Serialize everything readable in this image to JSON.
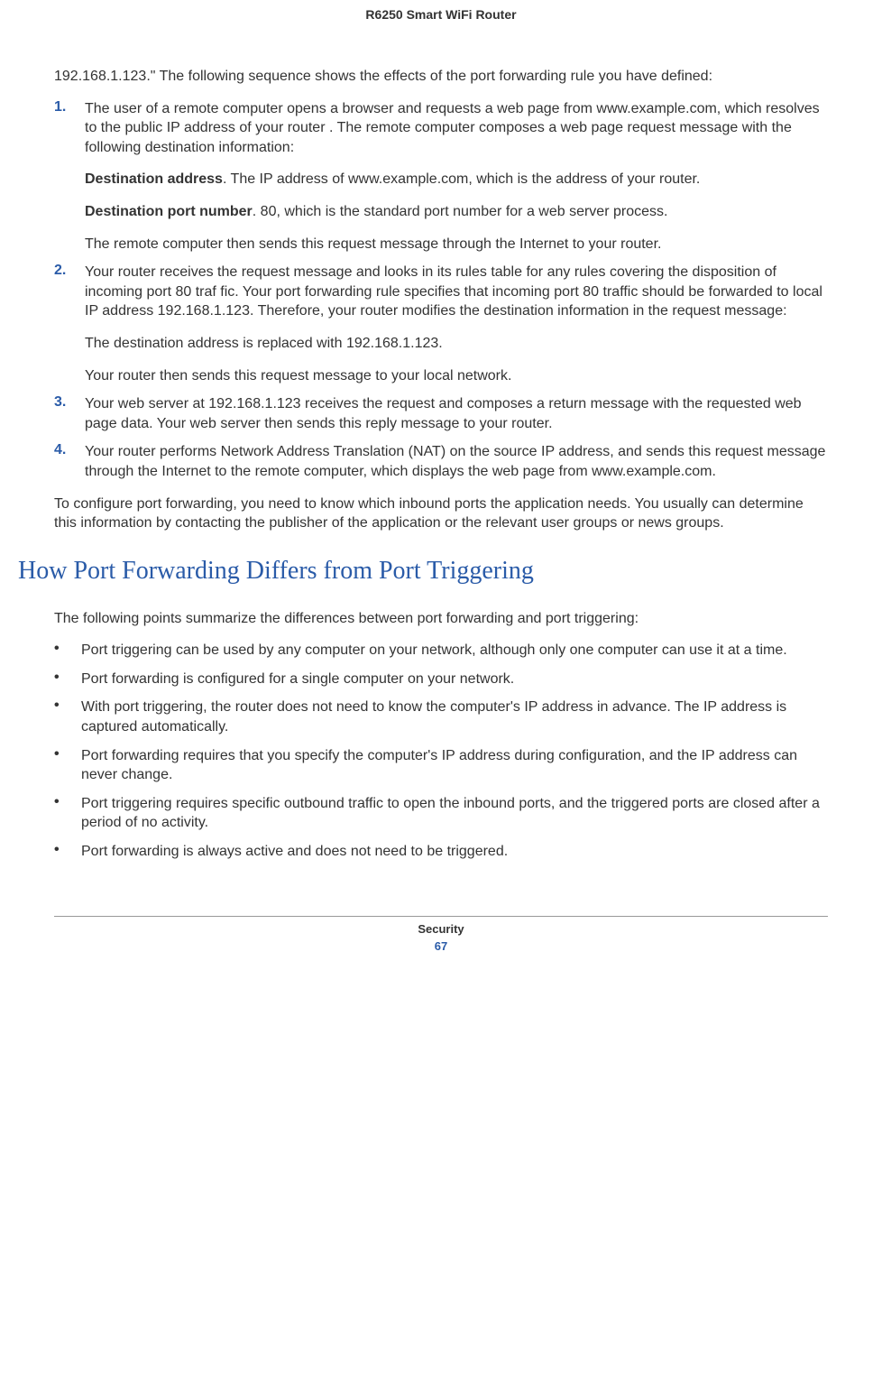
{
  "header": {
    "title": "R6250 Smart WiFi Router"
  },
  "intro": "192.168.1.123.\" The following sequence shows the effects of the port forwarding rule you have defined:",
  "steps": [
    {
      "marker": "1.",
      "paragraphs": [
        {
          "runs": [
            {
              "text": "The user of a remote computer opens a browser and requests a web page from www.example.com, which resolves to the public IP address of your router . The remote computer composes a web page request message with the following destination information:"
            }
          ]
        },
        {
          "runs": [
            {
              "text": "Destination address",
              "bold": true
            },
            {
              "text": ". The IP address of www.example.com, which is the address of your router."
            }
          ]
        },
        {
          "runs": [
            {
              "text": "Destination port number",
              "bold": true
            },
            {
              "text": ". 80, which is the standard port number for a web server process."
            }
          ]
        },
        {
          "runs": [
            {
              "text": "The remote computer then sends this request message through the Internet to your router."
            }
          ]
        }
      ]
    },
    {
      "marker": "2.",
      "paragraphs": [
        {
          "runs": [
            {
              "text": "Your router receives the request message and looks in its rules table for any rules covering the disposition of incoming port 80 traf fic. Your port forwarding rule specifies that incoming port 80 traffic should be forwarded to local IP address 192.168.1.123. Therefore, your router modifies the destination information in the request message:"
            }
          ]
        },
        {
          "runs": [
            {
              "text": "The destination address is replaced with 192.168.1.123."
            }
          ]
        },
        {
          "runs": [
            {
              "text": "Your router then sends this request message to your local network."
            }
          ]
        }
      ]
    },
    {
      "marker": "3.",
      "paragraphs": [
        {
          "runs": [
            {
              "text": "Your web server at 192.168.1.123 receives the request and composes a return message with the requested web page data.  Your web server then sends this reply message to your router."
            }
          ]
        }
      ]
    },
    {
      "marker": "4.",
      "paragraphs": [
        {
          "runs": [
            {
              "text": "Your router performs Network Address Translation (NAT) on the source IP address, and sends this request message through the Internet to the remote computer, which displays the web page from www.example.com."
            }
          ]
        }
      ]
    }
  ],
  "closing_para": "To configure port forwarding, you need to know which inbound ports the application needs. You usually can determine this information by contacting the publisher of the application or the relevant user groups or news groups.",
  "section": {
    "heading": "How Port Forwarding Differs from Port Triggering",
    "intro": "The following points summarize the differences between port forwarding and port triggering:",
    "bullets": [
      "Port triggering can be used by any computer on your network, although only one computer can use it at a time.",
      "Port forwarding is configured for a single computer on your network.",
      "With port triggering, the router does not need to know the computer's IP address in advance. The IP address is captured automatically.",
      "Port forwarding requires that you specify the computer's IP address during configuration, and the IP address can never change.",
      "Port triggering requires specific outbound traffic to open the inbound ports, and the triggered ports are closed after a period of no activity.",
      "Port forwarding is always active and does not need to be triggered."
    ]
  },
  "footer": {
    "section": "Security",
    "page": "67"
  },
  "style": {
    "heading_color": "#2a5ba8",
    "marker_color": "#2a5ba8",
    "text_color": "#333333",
    "background_color": "#ffffff",
    "body_fontsize": 16,
    "heading_fontsize": 28,
    "header_fontsize": 14
  }
}
